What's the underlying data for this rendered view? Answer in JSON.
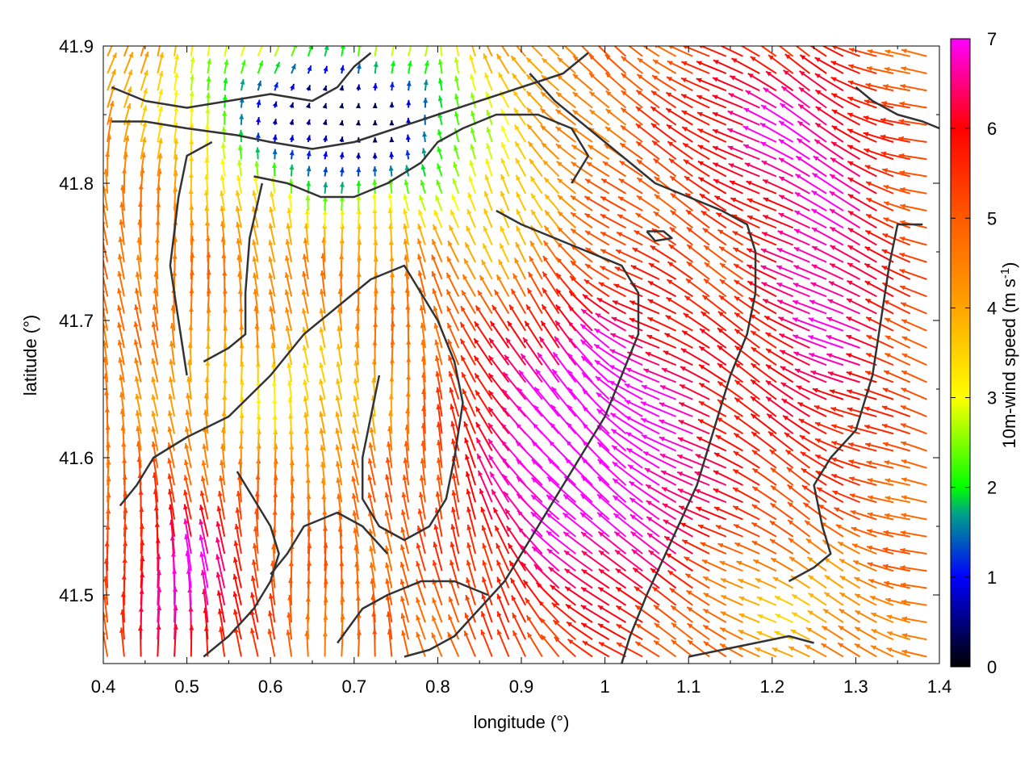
{
  "chart_data": {
    "type": "vector-field",
    "title": "",
    "xlabel": "longitude (°)",
    "ylabel": "latitude (°)",
    "xlim": [
      0.4,
      1.4
    ],
    "ylim": [
      41.45,
      41.9
    ],
    "xticks": [
      "0.4",
      "0.5",
      "0.6",
      "0.7",
      "0.8",
      "0.9",
      "1",
      "1.1",
      "1.2",
      "1.3",
      "1.4"
    ],
    "yticks": [
      "41.5",
      "41.6",
      "41.7",
      "41.8",
      "41.9"
    ],
    "grid": false,
    "colorbar": {
      "label_main": "10m-wind speed (m s",
      "label_sup": "-1",
      "label_close": ")",
      "range": [
        0,
        7
      ],
      "ticks": [
        "0",
        "1",
        "2",
        "3",
        "4",
        "5",
        "6",
        "7"
      ],
      "palette": [
        {
          "value": 0,
          "color": "#000000"
        },
        {
          "value": 1,
          "color": "#0000ff"
        },
        {
          "value": 1.7,
          "color": "#00a08a"
        },
        {
          "value": 2,
          "color": "#00ff00"
        },
        {
          "value": 3,
          "color": "#ffff00"
        },
        {
          "value": 4,
          "color": "#ffa500"
        },
        {
          "value": 5,
          "color": "#ff5a00"
        },
        {
          "value": 6,
          "color": "#ff0000"
        },
        {
          "value": 7,
          "color": "#ff00ff"
        }
      ]
    },
    "arrows": {
      "description_units": "direction in degrees (meteorological 'toward'), speed in m s-1",
      "grid_lon_start": 0.405,
      "grid_lon_end": 1.395,
      "grid_lon_step": 0.02,
      "grid_lat_start": 41.455,
      "grid_lat_end": 41.895,
      "grid_lat_step": 0.0125
    },
    "contours": {
      "color": "#333333",
      "lines": [
        [
          [
            0.41,
            41.87
          ],
          [
            0.45,
            41.86
          ],
          [
            0.5,
            41.855
          ],
          [
            0.55,
            41.86
          ],
          [
            0.6,
            41.865
          ],
          [
            0.65,
            41.86
          ],
          [
            0.68,
            41.87
          ],
          [
            0.7,
            41.885
          ],
          [
            0.72,
            41.895
          ]
        ],
        [
          [
            0.41,
            41.845
          ],
          [
            0.45,
            41.845
          ],
          [
            0.5,
            41.84
          ],
          [
            0.56,
            41.835
          ],
          [
            0.6,
            41.83
          ],
          [
            0.65,
            41.825
          ],
          [
            0.7,
            41.83
          ],
          [
            0.75,
            41.84
          ],
          [
            0.8,
            41.85
          ],
          [
            0.85,
            41.86
          ],
          [
            0.9,
            41.87
          ],
          [
            0.95,
            41.88
          ],
          [
            0.98,
            41.895
          ]
        ],
        [
          [
            0.58,
            41.805
          ],
          [
            0.62,
            41.8
          ],
          [
            0.66,
            41.79
          ],
          [
            0.7,
            41.79
          ],
          [
            0.74,
            41.8
          ],
          [
            0.78,
            41.815
          ],
          [
            0.8,
            41.83
          ],
          [
            0.83,
            41.84
          ],
          [
            0.87,
            41.85
          ],
          [
            0.92,
            41.85
          ],
          [
            0.96,
            41.84
          ],
          [
            0.98,
            41.82
          ],
          [
            0.96,
            41.8
          ]
        ],
        [
          [
            0.5,
            41.66
          ],
          [
            0.49,
            41.7
          ],
          [
            0.48,
            41.74
          ],
          [
            0.49,
            41.79
          ],
          [
            0.5,
            41.82
          ],
          [
            0.53,
            41.83
          ]
        ],
        [
          [
            0.59,
            41.8
          ],
          [
            0.575,
            41.76
          ],
          [
            0.57,
            41.72
          ],
          [
            0.57,
            41.69
          ],
          [
            0.55,
            41.68
          ],
          [
            0.52,
            41.67
          ]
        ],
        [
          [
            0.42,
            41.565
          ],
          [
            0.44,
            41.58
          ],
          [
            0.46,
            41.6
          ],
          [
            0.5,
            41.615
          ],
          [
            0.55,
            41.63
          ],
          [
            0.6,
            41.66
          ],
          [
            0.64,
            41.69
          ],
          [
            0.68,
            41.71
          ],
          [
            0.72,
            41.73
          ],
          [
            0.76,
            41.74
          ],
          [
            0.78,
            41.72
          ],
          [
            0.8,
            41.7
          ],
          [
            0.82,
            41.67
          ],
          [
            0.83,
            41.64
          ],
          [
            0.82,
            41.6
          ],
          [
            0.81,
            41.57
          ],
          [
            0.79,
            41.55
          ],
          [
            0.76,
            41.54
          ],
          [
            0.73,
            41.55
          ],
          [
            0.71,
            41.57
          ],
          [
            0.71,
            41.6
          ],
          [
            0.72,
            41.63
          ],
          [
            0.73,
            41.66
          ]
        ],
        [
          [
            0.91,
            41.88
          ],
          [
            0.94,
            41.86
          ],
          [
            0.98,
            41.84
          ],
          [
            1.02,
            41.82
          ],
          [
            1.06,
            41.8
          ],
          [
            1.1,
            41.79
          ],
          [
            1.14,
            41.78
          ],
          [
            1.17,
            41.77
          ],
          [
            1.18,
            41.75
          ],
          [
            1.18,
            41.72
          ],
          [
            1.17,
            41.69
          ],
          [
            1.15,
            41.66
          ],
          [
            1.13,
            41.62
          ],
          [
            1.11,
            41.58
          ],
          [
            1.08,
            41.54
          ],
          [
            1.05,
            41.5
          ],
          [
            1.03,
            41.47
          ],
          [
            1.02,
            41.45
          ]
        ],
        [
          [
            0.87,
            41.78
          ],
          [
            0.9,
            41.77
          ],
          [
            0.94,
            41.76
          ],
          [
            0.98,
            41.75
          ],
          [
            1.02,
            41.74
          ],
          [
            1.04,
            41.72
          ],
          [
            1.04,
            41.69
          ],
          [
            1.02,
            41.66
          ],
          [
            1.0,
            41.63
          ],
          [
            0.97,
            41.6
          ],
          [
            0.94,
            41.57
          ],
          [
            0.91,
            41.54
          ],
          [
            0.88,
            41.51
          ],
          [
            0.85,
            41.49
          ],
          [
            0.82,
            41.47
          ],
          [
            0.79,
            41.46
          ],
          [
            0.76,
            41.455
          ]
        ],
        [
          [
            0.68,
            41.465
          ],
          [
            0.71,
            41.49
          ],
          [
            0.74,
            41.5
          ],
          [
            0.78,
            41.51
          ],
          [
            0.82,
            41.51
          ],
          [
            0.86,
            41.5
          ]
        ],
        [
          [
            0.6,
            41.515
          ],
          [
            0.62,
            41.53
          ],
          [
            0.64,
            41.55
          ],
          [
            0.68,
            41.56
          ],
          [
            0.71,
            41.55
          ],
          [
            0.74,
            41.53
          ]
        ],
        [
          [
            1.25,
            41.465
          ],
          [
            1.22,
            41.47
          ],
          [
            1.18,
            41.465
          ],
          [
            1.14,
            41.46
          ],
          [
            1.1,
            41.455
          ]
        ],
        [
          [
            1.22,
            41.51
          ],
          [
            1.25,
            41.52
          ],
          [
            1.27,
            41.53
          ],
          [
            1.26,
            41.55
          ],
          [
            1.25,
            41.58
          ],
          [
            1.27,
            41.6
          ],
          [
            1.3,
            41.62
          ],
          [
            1.32,
            41.66
          ],
          [
            1.33,
            41.7
          ],
          [
            1.34,
            41.74
          ],
          [
            1.35,
            41.77
          ],
          [
            1.38,
            41.77
          ]
        ],
        [
          [
            1.3,
            41.87
          ],
          [
            1.32,
            41.86
          ],
          [
            1.35,
            41.85
          ],
          [
            1.38,
            41.845
          ],
          [
            1.4,
            41.84
          ]
        ],
        [
          [
            0.52,
            41.455
          ],
          [
            0.55,
            41.47
          ],
          [
            0.58,
            41.49
          ],
          [
            0.6,
            41.51
          ],
          [
            0.61,
            41.53
          ],
          [
            0.6,
            41.55
          ],
          [
            0.58,
            41.57
          ],
          [
            0.56,
            41.59
          ]
        ],
        [
          [
            1.05,
            41.765
          ],
          [
            1.07,
            41.765
          ],
          [
            1.08,
            41.76
          ],
          [
            1.06,
            41.758
          ],
          [
            1.05,
            41.765
          ]
        ]
      ]
    }
  }
}
